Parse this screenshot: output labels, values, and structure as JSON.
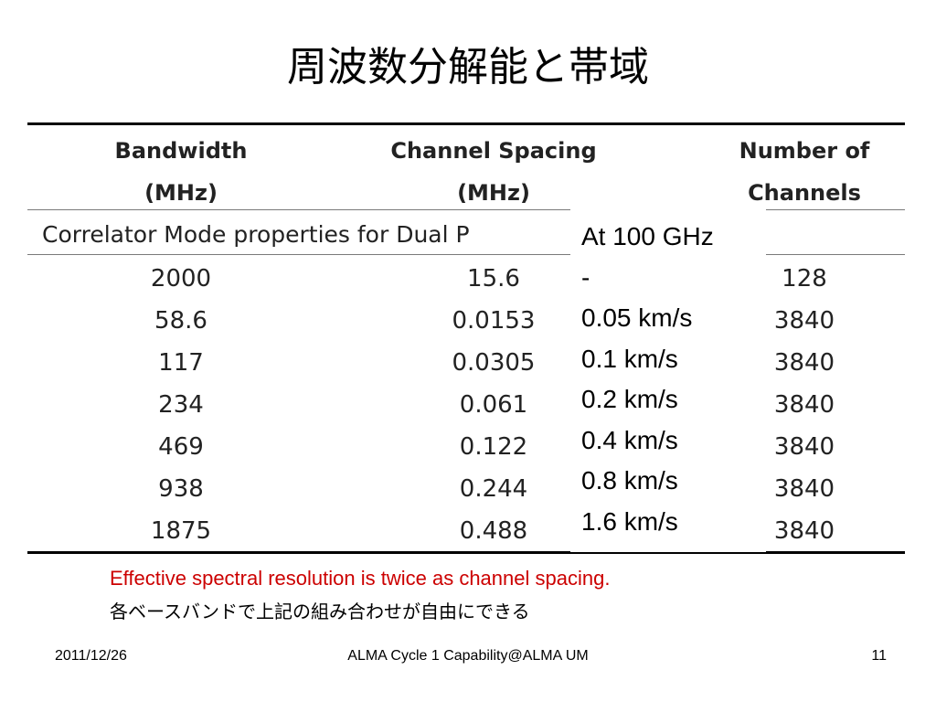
{
  "slide": {
    "title": "周波数分解能と帯域"
  },
  "table": {
    "headers": {
      "bandwidth": [
        "Bandwidth",
        "(MHz)"
      ],
      "channel_spacing": [
        "Channel Spacing",
        "(MHz)"
      ],
      "channels": [
        "Number of",
        "Channels"
      ]
    },
    "banner": "Correlator Mode properties for Dual P",
    "rows": [
      {
        "bandwidth": "2000",
        "spacing": "15.6",
        "channels": "128"
      },
      {
        "bandwidth": "58.6",
        "spacing": "0.0153",
        "channels": "3840"
      },
      {
        "bandwidth": "117",
        "spacing": "0.0305",
        "channels": "3840"
      },
      {
        "bandwidth": "234",
        "spacing": "0.061",
        "channels": "3840"
      },
      {
        "bandwidth": "469",
        "spacing": "0.122",
        "channels": "3840"
      },
      {
        "bandwidth": "938",
        "spacing": "0.244",
        "channels": "3840"
      },
      {
        "bandwidth": "1875",
        "spacing": "0.488",
        "channels": "3840"
      }
    ]
  },
  "overlay": {
    "lines": [
      "At 100 GHz",
      "-",
      "0.05 km/s",
      "0.1 km/s",
      "0.2 km/s",
      "0.4 km/s",
      "0.8 km/s",
      "1.6 km/s"
    ]
  },
  "notes": {
    "english": "Effective spectral resolution is twice as channel spacing.",
    "english_color": "#cc0000",
    "japanese": "各ベースバンドで上記の組み合わせが自由にできる"
  },
  "footer": {
    "date": "2011/12/26",
    "center": "ALMA Cycle 1 Capability@ALMA UM",
    "page": "11"
  }
}
